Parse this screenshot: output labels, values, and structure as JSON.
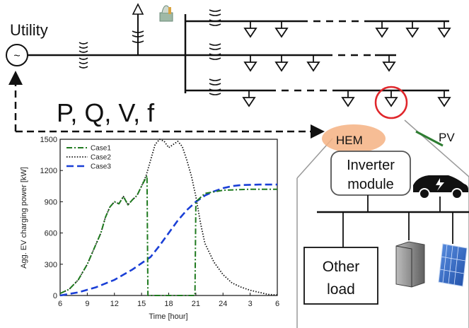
{
  "diagram": {
    "utility_label": "Utility",
    "source_symbol": "~",
    "signals_label": "P, Q, V, f",
    "hem_label": "HEM",
    "pv_label": "PV",
    "inverter_label_line1": "Inverter",
    "inverter_label_line2": "module",
    "other_load_line1": "Other",
    "other_load_line2": "load",
    "icons": [
      "ac-source-icon",
      "transformer-icon",
      "load-triangle-icon",
      "ev-car-icon",
      "battery-icon",
      "solar-panel-icon",
      "power-plant-icon"
    ]
  },
  "chart_data": {
    "type": "line",
    "xlabel": "Time [hour]",
    "ylabel": "Agg. EV charging power [kW]",
    "x_ticks": [
      "6",
      "9",
      "12",
      "15",
      "18",
      "21",
      "24",
      "3",
      "6"
    ],
    "y_ticks": [
      0,
      300,
      600,
      900,
      1200,
      1500
    ],
    "xlim": [
      6,
      30
    ],
    "ylim": [
      0,
      1500
    ],
    "legend_position": "top-left",
    "series": [
      {
        "name": "Case1",
        "color": "#1f7a1f",
        "style": "dash-dot",
        "x": [
          6,
          7,
          8,
          9,
          10,
          10.5,
          11,
          11.5,
          12,
          12.5,
          13,
          13.5,
          14,
          14.5,
          15,
          15.3,
          15.6,
          15.7,
          16,
          18,
          20.9,
          21,
          22,
          24,
          27,
          30
        ],
        "y": [
          20,
          60,
          150,
          300,
          500,
          600,
          750,
          850,
          900,
          880,
          950,
          870,
          920,
          960,
          1050,
          1100,
          1150,
          0,
          0,
          0,
          0,
          900,
          980,
          1010,
          1020,
          1020
        ]
      },
      {
        "name": "Case2",
        "color": "#111111",
        "style": "dotted",
        "x": [
          6,
          7,
          8,
          9,
          10,
          10.5,
          11,
          11.5,
          12,
          12.5,
          13,
          13.5,
          14,
          14.5,
          15,
          15.5,
          16,
          16.5,
          17,
          17.5,
          18,
          18.5,
          19,
          19.5,
          20,
          20.5,
          21,
          21.5,
          22,
          23,
          24,
          25,
          26,
          27,
          28,
          29,
          30
        ],
        "y": [
          20,
          60,
          150,
          300,
          500,
          600,
          750,
          850,
          900,
          880,
          950,
          870,
          920,
          960,
          1050,
          1150,
          1300,
          1450,
          1500,
          1480,
          1420,
          1450,
          1480,
          1430,
          1300,
          1150,
          950,
          700,
          500,
          320,
          200,
          120,
          80,
          50,
          30,
          10,
          5
        ]
      },
      {
        "name": "Case3",
        "color": "#1a3fd6",
        "style": "dashed",
        "x": [
          6,
          8,
          10,
          12,
          14,
          16,
          17,
          18,
          19,
          20,
          21,
          22,
          23,
          24,
          25,
          26,
          28,
          30
        ],
        "y": [
          0,
          30,
          80,
          150,
          250,
          370,
          480,
          600,
          720,
          820,
          900,
          960,
          1000,
          1030,
          1050,
          1060,
          1065,
          1065
        ]
      }
    ]
  }
}
